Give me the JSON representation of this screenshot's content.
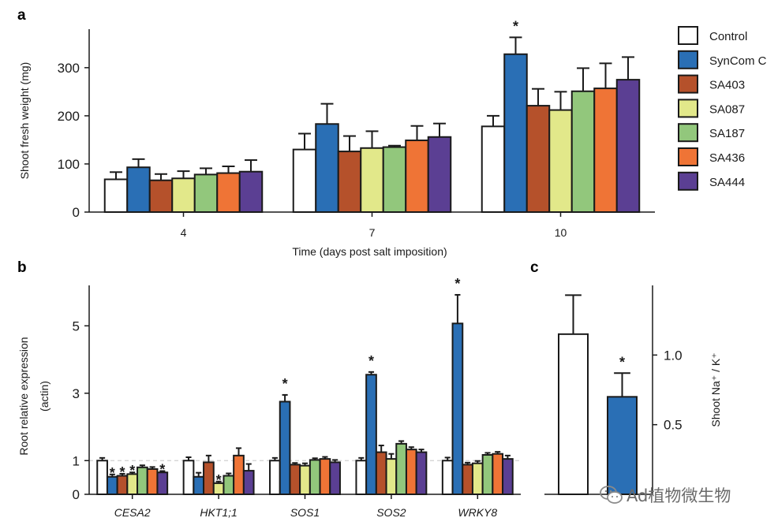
{
  "panel_labels": {
    "a": "a",
    "b": "b",
    "c": "c"
  },
  "legend": [
    {
      "label": "Control",
      "color": "#ffffff"
    },
    {
      "label": "SynCom C",
      "color": "#2a6fb5"
    },
    {
      "label": "SA403",
      "color": "#b5512b"
    },
    {
      "label": "SA087",
      "color": "#e2e88a"
    },
    {
      "label": "SA187",
      "color": "#92c77c"
    },
    {
      "label": "SA436",
      "color": "#ef7436"
    },
    {
      "label": "SA444",
      "color": "#5b3f93"
    }
  ],
  "watermark": {
    "text": "Ad植物微生物",
    "icon": "wechat-icon"
  },
  "chart_data": [
    {
      "id": "a",
      "type": "bar",
      "xlabel": "Time (days post salt imposition)",
      "ylabel": "Shoot fresh weight (mg)",
      "ylim": [
        0,
        380
      ],
      "yticks": [
        0,
        100,
        200,
        300
      ],
      "categories": [
        "4",
        "7",
        "10"
      ],
      "series": [
        {
          "name": "Control",
          "values": [
            68,
            130,
            178
          ],
          "errors": [
            15,
            33,
            22
          ],
          "sig": [
            false,
            false,
            false
          ]
        },
        {
          "name": "SynCom C",
          "values": [
            93,
            183,
            328
          ],
          "errors": [
            17,
            42,
            35
          ],
          "sig": [
            false,
            false,
            true
          ]
        },
        {
          "name": "SA403",
          "values": [
            66,
            126,
            221
          ],
          "errors": [
            13,
            32,
            35
          ],
          "sig": [
            false,
            false,
            false
          ]
        },
        {
          "name": "SA087",
          "values": [
            70,
            133,
            212
          ],
          "errors": [
            15,
            35,
            38
          ],
          "sig": [
            false,
            false,
            false
          ]
        },
        {
          "name": "SA187",
          "values": [
            78,
            135,
            251
          ],
          "errors": [
            13,
            3,
            48
          ],
          "sig": [
            false,
            false,
            false
          ]
        },
        {
          "name": "SA436",
          "values": [
            81,
            149,
            257
          ],
          "errors": [
            14,
            30,
            52
          ],
          "sig": [
            false,
            false,
            false
          ]
        },
        {
          "name": "SA444",
          "values": [
            84,
            156,
            275
          ],
          "errors": [
            24,
            28,
            47
          ],
          "sig": [
            false,
            false,
            false
          ]
        }
      ]
    },
    {
      "id": "b",
      "type": "bar",
      "xlabel": "",
      "ylabel": "Root relative expression (actin)",
      "ylim": [
        0,
        6.2
      ],
      "yticks": [
        0,
        1,
        3,
        5
      ],
      "categories": [
        "CESA2",
        "HKT1;1",
        "SOS1",
        "SOS2",
        "WRKY8"
      ],
      "series": [
        {
          "name": "Control",
          "values": [
            1.0,
            1.0,
            1.0,
            1.0,
            1.0
          ],
          "errors": [
            0.08,
            0.1,
            0.08,
            0.08,
            0.09
          ],
          "sig": [
            false,
            false,
            false,
            false,
            false
          ]
        },
        {
          "name": "SynCom C",
          "values": [
            0.52,
            0.52,
            2.75,
            3.55,
            5.07
          ],
          "errors": [
            0.07,
            0.12,
            0.2,
            0.08,
            0.85
          ],
          "sig": [
            true,
            false,
            true,
            true,
            true
          ]
        },
        {
          "name": "SA403",
          "values": [
            0.55,
            0.95,
            0.88,
            1.25,
            0.88
          ],
          "errors": [
            0.06,
            0.2,
            0.05,
            0.2,
            0.06
          ],
          "sig": [
            true,
            false,
            false,
            false,
            false
          ]
        },
        {
          "name": "SA087",
          "values": [
            0.6,
            0.33,
            0.85,
            1.05,
            0.92
          ],
          "errors": [
            0.05,
            0.05,
            0.07,
            0.15,
            0.07
          ],
          "sig": [
            true,
            true,
            false,
            false,
            false
          ]
        },
        {
          "name": "SA187",
          "values": [
            0.8,
            0.55,
            1.02,
            1.5,
            1.17
          ],
          "errors": [
            0.06,
            0.07,
            0.05,
            0.08,
            0.06
          ],
          "sig": [
            false,
            false,
            false,
            false,
            false
          ]
        },
        {
          "name": "SA436",
          "values": [
            0.75,
            1.15,
            1.05,
            1.33,
            1.2
          ],
          "errors": [
            0.06,
            0.22,
            0.06,
            0.07,
            0.06
          ],
          "sig": [
            false,
            false,
            false,
            false,
            false
          ]
        },
        {
          "name": "SA444",
          "values": [
            0.65,
            0.7,
            0.95,
            1.25,
            1.05
          ],
          "errors": [
            0.04,
            0.2,
            0.07,
            0.08,
            0.1
          ],
          "sig": [
            true,
            false,
            false,
            false,
            false
          ]
        }
      ],
      "reference_line": 1
    },
    {
      "id": "c",
      "type": "bar",
      "xlabel": "",
      "ylabel": "Shoot Na⁺ / K⁺",
      "yaxis_side": "right",
      "ylim": [
        0,
        1.5
      ],
      "yticks": [
        0.5,
        1.0
      ],
      "ytick_labels": [
        "0.5",
        "1.0"
      ],
      "categories": [
        "Control",
        "SynCom C"
      ],
      "values": [
        1.15,
        0.7
      ],
      "errors": [
        0.28,
        0.17
      ],
      "sig": [
        false,
        true
      ],
      "colors": [
        "#ffffff",
        "#2a6fb5"
      ]
    }
  ]
}
